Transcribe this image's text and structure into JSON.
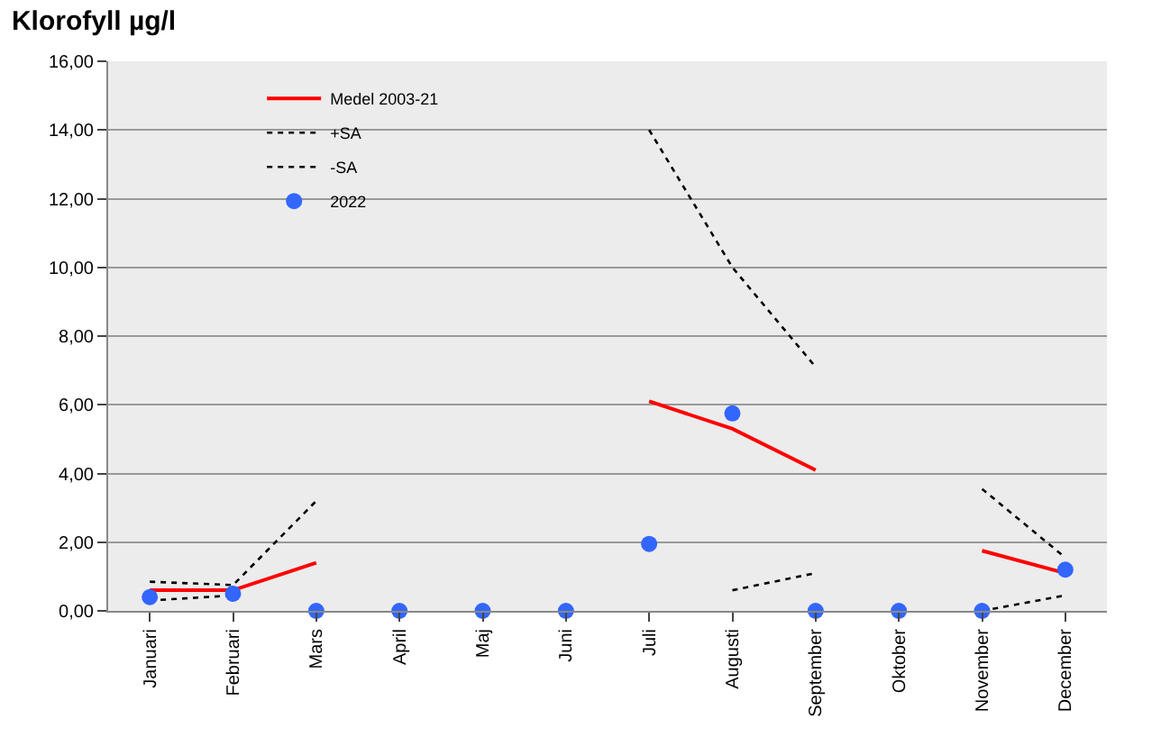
{
  "chart_data": {
    "type": "line",
    "title": "Klorofyll µg/l",
    "categories": [
      "Januari",
      "Februari",
      "Mars",
      "April",
      "Maj",
      "Juni",
      "Juli",
      "Augusti",
      "September",
      "Oktober",
      "November",
      "December"
    ],
    "series": [
      {
        "name": "Medel 2003-21",
        "color": "#ff0000",
        "line_style": "solid",
        "marker": "none",
        "values": [
          0.6,
          0.6,
          1.4,
          null,
          null,
          null,
          6.1,
          5.3,
          4.1,
          null,
          1.75,
          1.1
        ]
      },
      {
        "name": "+SA",
        "color": "#000000",
        "line_style": "dotted",
        "marker": "none",
        "values": [
          0.85,
          0.75,
          3.2,
          null,
          null,
          null,
          14.0,
          10.0,
          7.1,
          null,
          3.55,
          1.55
        ]
      },
      {
        "name": "-SA",
        "color": "#000000",
        "line_style": "dotted",
        "marker": "none",
        "values": [
          0.3,
          0.45,
          null,
          null,
          null,
          null,
          null,
          0.6,
          1.1,
          null,
          0.0,
          0.45
        ]
      },
      {
        "name": "2022",
        "type": "scatter",
        "color": "#3366ff",
        "marker": "circle",
        "values": [
          0.4,
          0.5,
          0.0,
          0.0,
          0.0,
          0.0,
          1.95,
          5.75,
          0.0,
          0.0,
          0.0,
          1.2
        ]
      }
    ],
    "ylim": [
      0,
      16
    ],
    "yticks": [
      {
        "value": 0,
        "label": "0,00"
      },
      {
        "value": 2,
        "label": "2,00"
      },
      {
        "value": 4,
        "label": "4,00"
      },
      {
        "value": 6,
        "label": "6,00"
      },
      {
        "value": 8,
        "label": "8,00"
      },
      {
        "value": 10,
        "label": "10,00"
      },
      {
        "value": 12,
        "label": "12,00"
      },
      {
        "value": 14,
        "label": "14,00"
      },
      {
        "value": 16,
        "label": "16,00"
      }
    ],
    "grid": "y",
    "legend": "top left"
  }
}
